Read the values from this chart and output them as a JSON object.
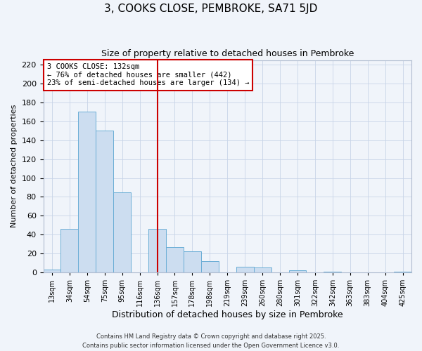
{
  "title": "3, COOKS CLOSE, PEMBROKE, SA71 5JD",
  "subtitle": "Size of property relative to detached houses in Pembroke",
  "xlabel": "Distribution of detached houses by size in Pembroke",
  "ylabel": "Number of detached properties",
  "bar_labels": [
    "13sqm",
    "34sqm",
    "54sqm",
    "75sqm",
    "95sqm",
    "116sqm",
    "136sqm",
    "157sqm",
    "178sqm",
    "198sqm",
    "219sqm",
    "239sqm",
    "260sqm",
    "280sqm",
    "301sqm",
    "322sqm",
    "342sqm",
    "363sqm",
    "383sqm",
    "404sqm",
    "425sqm"
  ],
  "bar_values": [
    3,
    46,
    170,
    150,
    85,
    0,
    46,
    27,
    22,
    12,
    0,
    6,
    5,
    0,
    2,
    0,
    1,
    0,
    0,
    0,
    1
  ],
  "bar_color": "#ccddf0",
  "bar_edge_color": "#6baed6",
  "vline_x_label": "136sqm",
  "vline_color": "#cc0000",
  "annotation_text": "3 COOKS CLOSE: 132sqm\n← 76% of detached houses are smaller (442)\n23% of semi-detached houses are larger (134) →",
  "annotation_box_color": "white",
  "annotation_box_edge": "#cc0000",
  "ylim": [
    0,
    225
  ],
  "yticks": [
    0,
    20,
    40,
    60,
    80,
    100,
    120,
    140,
    160,
    180,
    200,
    220
  ],
  "footer1": "Contains HM Land Registry data © Crown copyright and database right 2025.",
  "footer2": "Contains public sector information licensed under the Open Government Licence v3.0.",
  "bg_color": "#f0f4fa",
  "grid_color": "#c8d4e8",
  "spine_color": "#b0bcd0"
}
